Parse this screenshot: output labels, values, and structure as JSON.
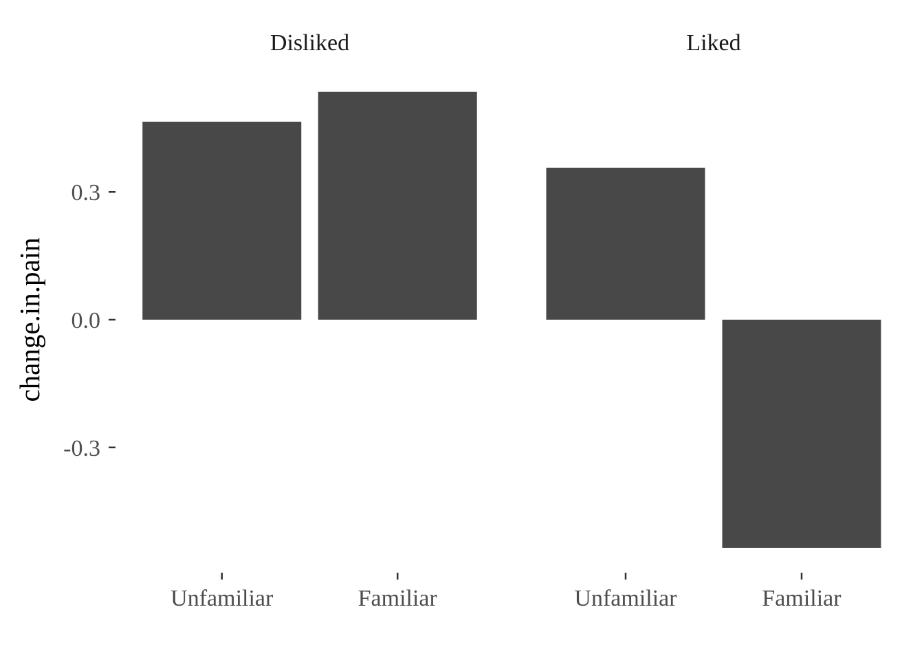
{
  "chart_data": {
    "type": "bar",
    "ylabel": "change.in.pain",
    "ylim": [
      -0.57,
      0.57
    ],
    "y_ticks": [
      {
        "value": -0.3,
        "label": "-0.3"
      },
      {
        "value": 0.0,
        "label": "0.0"
      },
      {
        "value": 0.3,
        "label": "0.3"
      }
    ],
    "categories": [
      "Unfamiliar",
      "Familiar"
    ],
    "facets": [
      {
        "label": "Disliked",
        "bars": [
          {
            "category": "Unfamiliar",
            "value": 0.465
          },
          {
            "category": "Familiar",
            "value": 0.535
          }
        ]
      },
      {
        "label": "Liked",
        "bars": [
          {
            "category": "Unfamiliar",
            "value": 0.357
          },
          {
            "category": "Familiar",
            "value": -0.536
          }
        ]
      }
    ],
    "bar_color": "#484848",
    "grid": false,
    "legend": "none"
  }
}
